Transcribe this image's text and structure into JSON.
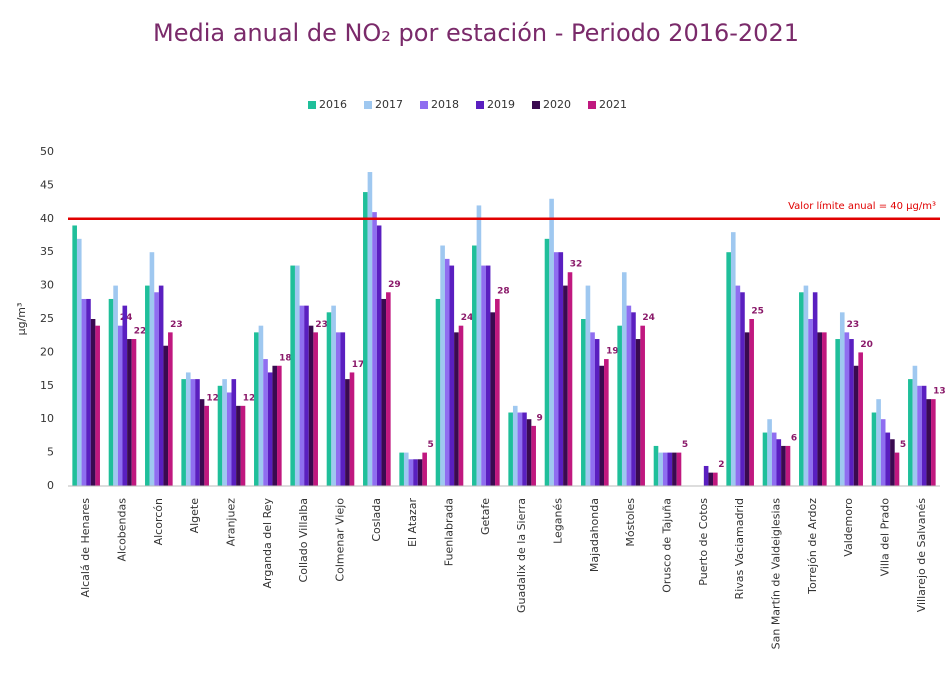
{
  "chart_data": {
    "type": "bar",
    "title": "Media anual de NO₂ por estación - Periodo 2016-2021",
    "ylabel": "µg/m³",
    "categories": [
      "Alcalá de Henares",
      "Alcobendas",
      "Alcorcón",
      "Algete",
      "Aranjuez",
      "Arganda del Rey",
      "Collado Villalba",
      "Colmenar Viejo",
      "Coslada",
      "El Atazar",
      "Fuenlabrada",
      "Getafe",
      "Guadalix de la Sierra",
      "Leganés",
      "Majadahonda",
      "Móstoles",
      "Orusco de Tajuña",
      "Puerto de Cotos",
      "Rivas Vaciamadrid",
      "San Martín de Valdeiglesias",
      "Torrejón de Ardoz",
      "Valdemoro",
      "Villa del Prado",
      "Villarejo de Salvanés"
    ],
    "series": [
      {
        "name": "2016",
        "color": "#1fbf9a",
        "values": [
          39,
          28,
          30,
          16,
          15,
          23,
          33,
          26,
          44,
          5,
          28,
          36,
          11,
          37,
          25,
          24,
          6,
          null,
          35,
          8,
          29,
          22,
          11,
          16
        ]
      },
      {
        "name": "2017",
        "color": "#9fc8f0",
        "values": [
          37,
          30,
          35,
          17,
          16,
          24,
          33,
          27,
          47,
          5,
          36,
          42,
          12,
          43,
          30,
          32,
          5,
          null,
          38,
          10,
          30,
          26,
          13,
          18
        ]
      },
      {
        "name": "2018",
        "color": "#8f6ef0",
        "values": [
          28,
          24,
          29,
          16,
          14,
          19,
          27,
          23,
          41,
          4,
          34,
          33,
          11,
          35,
          23,
          27,
          5,
          null,
          30,
          8,
          25,
          23,
          10,
          15
        ],
        "value_labels": [
          null,
          "24",
          null,
          null,
          null,
          null,
          null,
          null,
          null,
          null,
          null,
          null,
          null,
          null,
          null,
          null,
          null,
          null,
          null,
          null,
          null,
          "23",
          null,
          null
        ]
      },
      {
        "name": "2019",
        "color": "#5a1fc0",
        "values": [
          28,
          27,
          30,
          16,
          16,
          17,
          27,
          23,
          39,
          4,
          33,
          33,
          11,
          35,
          22,
          26,
          5,
          3,
          29,
          7,
          29,
          22,
          8,
          15
        ]
      },
      {
        "name": "2020",
        "color": "#3a0a50",
        "values": [
          25,
          22,
          21,
          13,
          12,
          18,
          24,
          16,
          28,
          4,
          23,
          26,
          10,
          30,
          18,
          22,
          5,
          2,
          23,
          6,
          23,
          18,
          7,
          13
        ]
      },
      {
        "name": "2021",
        "color": "#c0187f",
        "values": [
          24,
          22,
          23,
          12,
          12,
          18,
          23,
          17,
          29,
          5,
          24,
          28,
          9,
          32,
          19,
          24,
          5,
          2,
          25,
          6,
          23,
          20,
          5,
          13
        ],
        "value_labels": [
          null,
          "22",
          "23",
          "12",
          "12",
          "18",
          "23",
          "17",
          "29",
          "5",
          "24",
          "28",
          "9",
          "32",
          "19",
          "24",
          "5",
          "2",
          "25",
          "6",
          null,
          "20",
          "5",
          "13"
        ]
      }
    ],
    "ylim": [
      0,
      50
    ],
    "yticks": [
      0,
      5,
      10,
      15,
      20,
      25,
      30,
      35,
      40,
      45,
      50
    ],
    "grid": false,
    "reference_line": {
      "value": 40,
      "label": "Valor límite anual = 40 µg/m³",
      "color": "#e00000"
    }
  }
}
